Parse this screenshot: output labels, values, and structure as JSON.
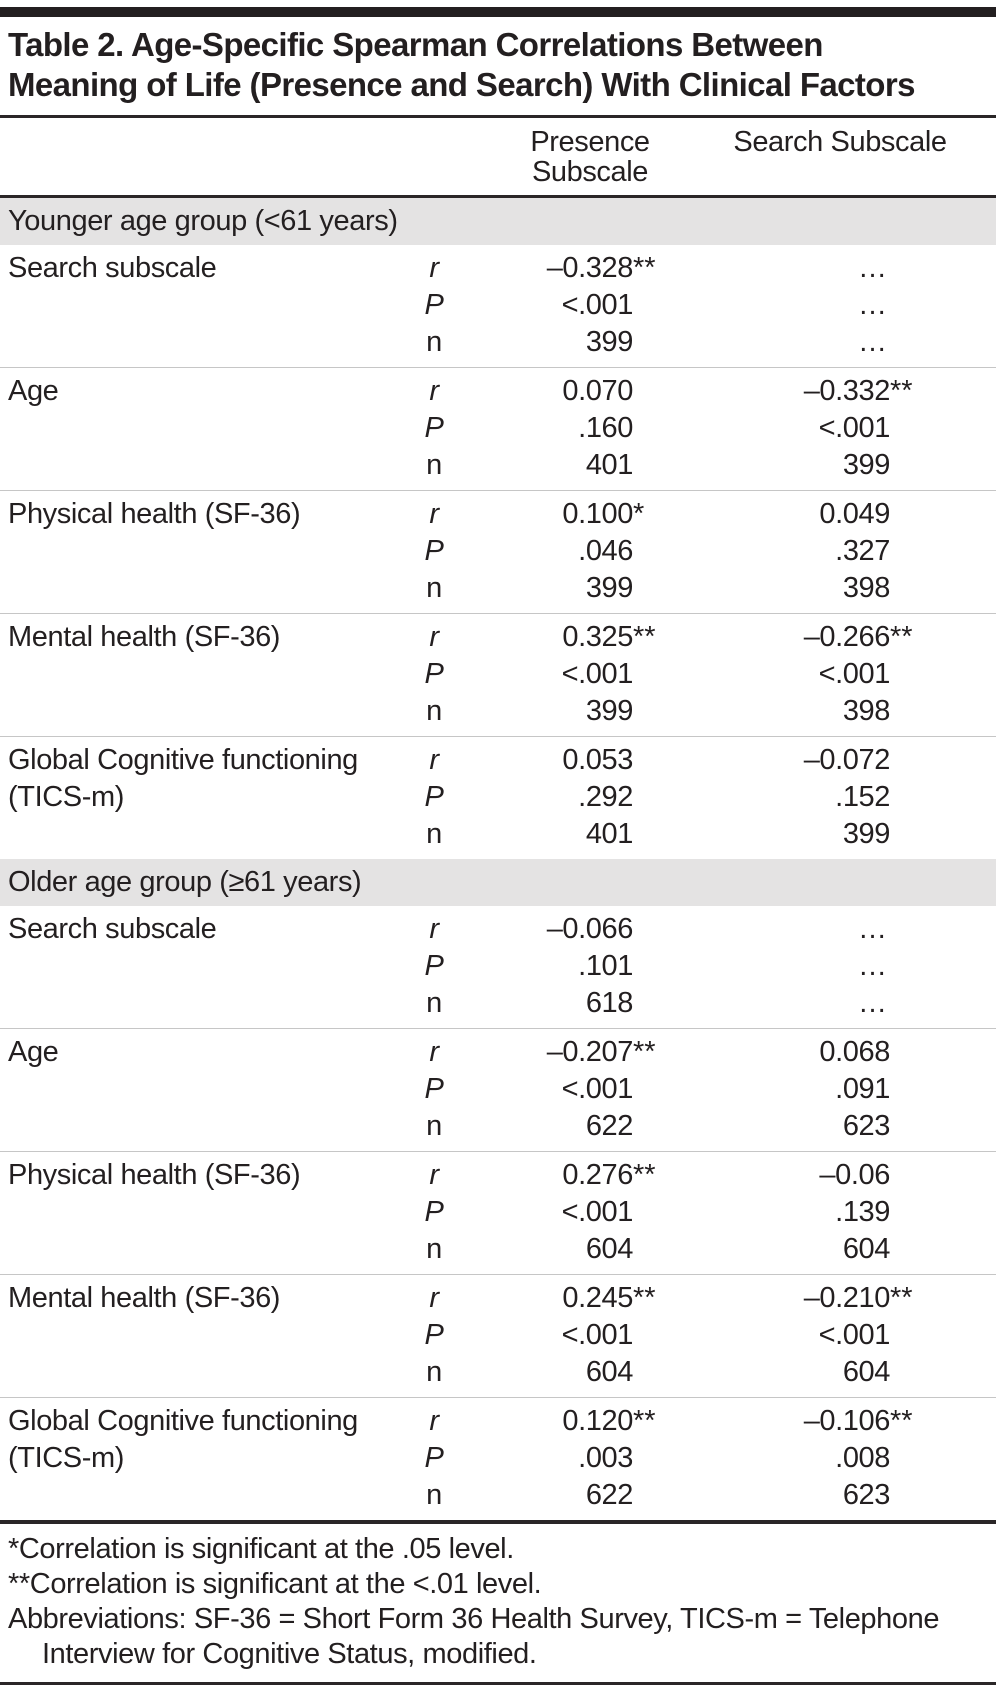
{
  "table": {
    "title_lines": [
      "Table 2. Age-Specific Spearman Correlations Between",
      "Meaning of Life (Presence and Search) With Clinical Factors"
    ],
    "col_headers": [
      "Presence Subscale",
      "Search Subscale"
    ],
    "stat_labels": [
      "r",
      "P",
      "n"
    ],
    "sections": [
      {
        "label": "Younger age group (<61 years)",
        "rows": [
          {
            "factor": "Search subscale",
            "presence": [
              [
                "–0.328",
                "**"
              ],
              [
                "<.001",
                ""
              ],
              [
                "399",
                ""
              ]
            ],
            "search": [
              [
                "…",
                ""
              ],
              [
                "…",
                ""
              ],
              [
                "…",
                ""
              ]
            ]
          },
          {
            "factor": "Age",
            "presence": [
              [
                "0.070",
                ""
              ],
              [
                ".160",
                ""
              ],
              [
                "401",
                ""
              ]
            ],
            "search": [
              [
                "–0.332",
                "**"
              ],
              [
                "<.001",
                ""
              ],
              [
                "399",
                ""
              ]
            ]
          },
          {
            "factor": "Physical health (SF-36)",
            "presence": [
              [
                "0.100",
                "*"
              ],
              [
                ".046",
                ""
              ],
              [
                "399",
                ""
              ]
            ],
            "search": [
              [
                "0.049",
                ""
              ],
              [
                ".327",
                ""
              ],
              [
                "398",
                ""
              ]
            ]
          },
          {
            "factor": "Mental health (SF-36)",
            "presence": [
              [
                "0.325",
                "**"
              ],
              [
                "<.001",
                ""
              ],
              [
                "399",
                ""
              ]
            ],
            "search": [
              [
                "–0.266",
                "**"
              ],
              [
                "<.001",
                ""
              ],
              [
                "398",
                ""
              ]
            ]
          },
          {
            "factor": "Global Cognitive functioning (TICS-m)",
            "presence": [
              [
                "0.053",
                ""
              ],
              [
                ".292",
                ""
              ],
              [
                "401",
                ""
              ]
            ],
            "search": [
              [
                "–0.072",
                ""
              ],
              [
                ".152",
                ""
              ],
              [
                "399",
                ""
              ]
            ]
          }
        ]
      },
      {
        "label": "Older age group (≥61 years)",
        "rows": [
          {
            "factor": "Search subscale",
            "presence": [
              [
                "–0.066",
                ""
              ],
              [
                ".101",
                ""
              ],
              [
                "618",
                ""
              ]
            ],
            "search": [
              [
                "…",
                ""
              ],
              [
                "…",
                ""
              ],
              [
                "…",
                ""
              ]
            ]
          },
          {
            "factor": "Age",
            "presence": [
              [
                "–0.207",
                "**"
              ],
              [
                "<.001",
                ""
              ],
              [
                "622",
                ""
              ]
            ],
            "search": [
              [
                "0.068",
                ""
              ],
              [
                ".091",
                ""
              ],
              [
                "623",
                ""
              ]
            ]
          },
          {
            "factor": "Physical health (SF-36)",
            "presence": [
              [
                "0.276",
                "**"
              ],
              [
                "<.001",
                ""
              ],
              [
                "604",
                ""
              ]
            ],
            "search": [
              [
                "–0.06",
                ""
              ],
              [
                ".139",
                ""
              ],
              [
                "604",
                ""
              ]
            ]
          },
          {
            "factor": "Mental health (SF-36)",
            "presence": [
              [
                "0.245",
                "**"
              ],
              [
                "<.001",
                ""
              ],
              [
                "604",
                ""
              ]
            ],
            "search": [
              [
                "–0.210",
                "**"
              ],
              [
                "<.001",
                ""
              ],
              [
                "604",
                ""
              ]
            ]
          },
          {
            "factor": "Global Cognitive functioning (TICS-m)",
            "presence": [
              [
                "0.120",
                "**"
              ],
              [
                ".003",
                ""
              ],
              [
                "622",
                ""
              ]
            ],
            "search": [
              [
                "–0.106",
                "**"
              ],
              [
                ".008",
                ""
              ],
              [
                "623",
                ""
              ]
            ]
          }
        ]
      }
    ],
    "footnotes": [
      {
        "text": "*Correlation is significant at the .05 level.",
        "indent": false
      },
      {
        "text": "**Correlation is significant at the <.01 level.",
        "indent": false
      },
      {
        "text": "Abbreviations: SF-36 = Short Form 36 Health Survey, TICS-m = Telephone",
        "indent": false
      },
      {
        "text": "Interview for Cognitive Status, modified.",
        "indent": true
      }
    ]
  }
}
